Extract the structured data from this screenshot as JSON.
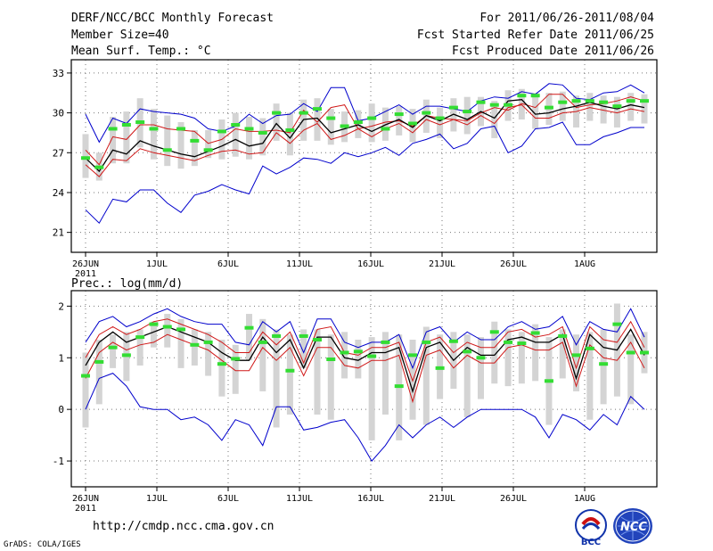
{
  "header": {
    "line1": "DERF/NCC/BCC Monthly Forecast",
    "line2": "Member Size=40",
    "line3": "Mean Surf. Temp.: °C",
    "right1": "For 2011/06/26-2011/08/04",
    "right2": "Fcst Started Refer Date 2011/06/25",
    "right3": "Fcst Produced Date 2011/06/26"
  },
  "footer": {
    "url": "http://cmdp.ncc.cma.gov.cn",
    "credit": "GrADS: COLA/IGES"
  },
  "logos": {
    "bcc": "BCC",
    "ncc": "NCC"
  },
  "colors": {
    "box": "#d4d4d4",
    "mean": "#000000",
    "inner": "#d01818",
    "outer": "#0000cc",
    "median": "#33dd33",
    "grid": "#777777"
  },
  "chart_data": [
    {
      "type": "line",
      "title": "Mean Surf. Temp.: °C",
      "year_label": "2011",
      "ylim": [
        19.5,
        34
      ],
      "yticks": [
        21,
        24,
        27,
        30,
        33
      ],
      "ytick_labels": [
        "21",
        "24",
        "27",
        "30",
        "33"
      ],
      "days": 40,
      "xtick_days": [
        0,
        5,
        10,
        15,
        20,
        25,
        30,
        35
      ],
      "xtick_labels": [
        "26JUN",
        "1JUL",
        "6JUL",
        "11JUL",
        "16JUL",
        "21JUL",
        "26JUL",
        "1AUG"
      ],
      "series": [
        {
          "name": "max",
          "role": "outer",
          "values": [
            29.9,
            27.8,
            29.6,
            29.2,
            30.3,
            30.1,
            30.0,
            29.9,
            29.6,
            28.8,
            28.6,
            29.0,
            29.9,
            29.2,
            29.8,
            29.9,
            30.7,
            30.1,
            31.9,
            31.9,
            29.4,
            29.6,
            30.1,
            30.6,
            29.9,
            30.5,
            30.5,
            30.3,
            30.1,
            30.9,
            31.2,
            31.1,
            31.6,
            31.4,
            32.2,
            32.1,
            31.1,
            31.0,
            31.5,
            31.6,
            32.1,
            31.5
          ]
        },
        {
          "name": "upper",
          "role": "inner",
          "values": [
            27.2,
            26.1,
            28.2,
            28.0,
            29.1,
            29.1,
            28.8,
            28.7,
            28.6,
            27.7,
            28.0,
            28.8,
            28.6,
            28.6,
            28.7,
            28.5,
            30.2,
            29.3,
            30.4,
            30.6,
            28.8,
            29.0,
            29.3,
            29.4,
            29.0,
            29.8,
            29.6,
            29.5,
            29.4,
            30.0,
            30.4,
            30.2,
            30.7,
            30.4,
            31.4,
            31.4,
            30.4,
            30.6,
            30.7,
            30.9,
            31.2,
            30.9
          ]
        },
        {
          "name": "mean",
          "role": "mean",
          "values": [
            26.6,
            25.6,
            27.2,
            26.9,
            27.9,
            27.5,
            27.2,
            26.9,
            26.7,
            27.1,
            27.5,
            28.0,
            27.5,
            27.7,
            29.2,
            28.1,
            29.5,
            29.6,
            28.5,
            28.8,
            29.1,
            28.6,
            29.1,
            29.5,
            28.9,
            29.8,
            29.4,
            29.9,
            29.5,
            30.1,
            29.6,
            30.9,
            31.0,
            29.9,
            30.0,
            30.3,
            30.5,
            30.8,
            30.5,
            30.3,
            30.6,
            30.4
          ]
        },
        {
          "name": "lower",
          "role": "inner",
          "values": [
            26.1,
            25.2,
            26.5,
            26.4,
            27.3,
            27.0,
            26.8,
            26.6,
            26.4,
            26.8,
            27.1,
            27.2,
            26.9,
            27.0,
            28.5,
            27.7,
            28.7,
            29.2,
            28.0,
            28.3,
            28.8,
            28.2,
            28.8,
            29.2,
            28.5,
            29.5,
            29.1,
            29.5,
            29.1,
            29.8,
            29.2,
            30.4,
            30.6,
            29.6,
            29.6,
            30.0,
            30.1,
            30.4,
            30.2,
            30.0,
            30.3,
            30.1
          ]
        },
        {
          "name": "min",
          "role": "outer",
          "values": [
            22.7,
            21.7,
            23.5,
            23.3,
            24.2,
            24.2,
            23.2,
            22.5,
            23.8,
            24.1,
            24.6,
            24.2,
            23.9,
            26.0,
            25.4,
            25.9,
            26.6,
            26.5,
            26.2,
            27.0,
            26.7,
            27.0,
            27.4,
            26.8,
            27.7,
            28.0,
            28.4,
            27.3,
            27.7,
            28.8,
            29.0,
            27.0,
            27.5,
            28.8,
            28.9,
            29.3,
            27.6,
            27.6,
            28.2,
            28.5,
            28.9,
            28.9
          ]
        },
        {
          "name": "median",
          "role": "median",
          "values": [
            26.6,
            25.9,
            28.8,
            29.1,
            29.3,
            28.8,
            27.2,
            28.8,
            27.9,
            27.2,
            28.6,
            29.1,
            28.8,
            28.5,
            30.0,
            28.7,
            30.0,
            30.3,
            29.6,
            29.0,
            29.3,
            29.6,
            28.8,
            29.9,
            29.2,
            30.0,
            29.6,
            30.4,
            30.1,
            30.8,
            30.6,
            30.6,
            31.3,
            31.3,
            30.4,
            30.8,
            30.9,
            30.9,
            30.8,
            30.5,
            30.9,
            30.9
          ]
        },
        {
          "name": "box_high",
          "role": "box",
          "values": [
            28.4,
            27.0,
            29.7,
            30.1,
            31.1,
            30.3,
            29.8,
            29.3,
            28.7,
            28.7,
            29.5,
            30.0,
            29.7,
            29.6,
            30.7,
            30.0,
            31.0,
            31.1,
            30.3,
            30.1,
            30.2,
            30.7,
            30.4,
            30.5,
            30.3,
            31.0,
            30.4,
            31.1,
            31.2,
            31.2,
            30.9,
            31.7,
            31.8,
            31.5,
            31.5,
            31.6,
            31.3,
            31.5,
            31.3,
            31.2,
            31.5,
            31.4
          ]
        },
        {
          "name": "box_low",
          "role": "box",
          "values": [
            25.1,
            24.9,
            26.2,
            26.2,
            27.4,
            26.5,
            26.0,
            25.8,
            26.0,
            26.6,
            26.5,
            26.7,
            26.5,
            26.8,
            27.9,
            26.8,
            27.9,
            27.9,
            27.6,
            27.8,
            28.1,
            27.8,
            27.9,
            28.3,
            27.8,
            28.5,
            28.1,
            28.6,
            28.4,
            29.0,
            28.1,
            29.4,
            29.5,
            28.8,
            29.1,
            29.4,
            28.9,
            29.4,
            29.2,
            28.9,
            29.4,
            29.2
          ]
        }
      ]
    },
    {
      "type": "line",
      "title": "Prec.: log(mm/d)",
      "year_label": "2011",
      "ylim": [
        -1.5,
        2.3
      ],
      "yticks": [
        -1,
        0,
        1,
        2
      ],
      "ytick_labels": [
        "-1",
        "0",
        "1",
        "2"
      ],
      "days": 40,
      "xtick_days": [
        0,
        5,
        10,
        15,
        20,
        25,
        30,
        35
      ],
      "xtick_labels": [
        "26JUN",
        "1JUL",
        "6JUL",
        "11JUL",
        "16JUL",
        "21JUL",
        "26JUL",
        "1AUG"
      ],
      "series": [
        {
          "name": "max",
          "role": "outer",
          "values": [
            1.3,
            1.7,
            1.8,
            1.6,
            1.7,
            1.85,
            1.95,
            1.8,
            1.7,
            1.65,
            1.65,
            1.3,
            1.25,
            1.7,
            1.5,
            1.7,
            1.1,
            1.75,
            1.75,
            1.3,
            1.2,
            1.3,
            1.3,
            1.45,
            0.8,
            1.5,
            1.6,
            1.3,
            1.5,
            1.35,
            1.35,
            1.6,
            1.7,
            1.55,
            1.6,
            1.8,
            1.25,
            1.7,
            1.55,
            1.5,
            1.95,
            1.4
          ]
        },
        {
          "name": "upper",
          "role": "inner",
          "values": [
            1.0,
            1.45,
            1.6,
            1.45,
            1.55,
            1.7,
            1.75,
            1.65,
            1.55,
            1.45,
            1.3,
            1.1,
            1.1,
            1.5,
            1.25,
            1.5,
            0.9,
            1.55,
            1.6,
            1.1,
            1.05,
            1.2,
            1.2,
            1.3,
            0.55,
            1.3,
            1.4,
            1.1,
            1.3,
            1.2,
            1.2,
            1.5,
            1.55,
            1.4,
            1.45,
            1.6,
            0.8,
            1.6,
            1.35,
            1.3,
            1.7,
            1.2
          ]
        },
        {
          "name": "mean",
          "role": "mean",
          "values": [
            0.85,
            1.3,
            1.5,
            1.3,
            1.4,
            1.5,
            1.6,
            1.5,
            1.4,
            1.3,
            1.1,
            0.95,
            0.95,
            1.4,
            1.1,
            1.35,
            0.8,
            1.4,
            1.4,
            1.0,
            0.95,
            1.1,
            1.1,
            1.2,
            0.35,
            1.2,
            1.3,
            0.95,
            1.2,
            1.05,
            1.05,
            1.35,
            1.4,
            1.3,
            1.3,
            1.45,
            0.6,
            1.45,
            1.2,
            1.15,
            1.55,
            1.05
          ]
        },
        {
          "name": "lower",
          "role": "inner",
          "values": [
            0.6,
            1.1,
            1.3,
            1.15,
            1.25,
            1.3,
            1.45,
            1.35,
            1.25,
            1.15,
            0.95,
            0.75,
            0.75,
            1.2,
            0.95,
            1.2,
            0.65,
            1.2,
            1.2,
            0.85,
            0.8,
            0.95,
            0.95,
            1.05,
            0.15,
            1.05,
            1.15,
            0.8,
            1.05,
            0.9,
            0.9,
            1.2,
            1.25,
            1.15,
            1.15,
            1.3,
            0.45,
            1.25,
            1.0,
            0.95,
            1.3,
            0.8
          ]
        },
        {
          "name": "min",
          "role": "outer",
          "values": [
            0.0,
            0.6,
            0.7,
            0.45,
            0.05,
            0.0,
            0.0,
            -0.2,
            -0.15,
            -0.3,
            -0.6,
            -0.2,
            -0.3,
            -0.7,
            0.05,
            0.05,
            -0.4,
            -0.35,
            -0.25,
            -0.2,
            -0.55,
            -1.0,
            -0.7,
            -0.3,
            -0.55,
            -0.3,
            -0.15,
            -0.35,
            -0.15,
            0.0,
            0.0,
            0.0,
            0.0,
            -0.15,
            -0.55,
            -0.1,
            -0.2,
            -0.4,
            -0.1,
            -0.3,
            0.25,
            0.0
          ]
        },
        {
          "name": "median",
          "role": "median",
          "values": [
            0.65,
            0.92,
            1.2,
            1.05,
            1.4,
            1.65,
            1.6,
            1.55,
            1.25,
            1.3,
            0.88,
            0.98,
            1.58,
            1.3,
            1.42,
            0.75,
            1.42,
            1.35,
            0.97,
            1.1,
            1.12,
            1.03,
            1.3,
            0.45,
            1.05,
            1.3,
            0.8,
            1.32,
            1.12,
            1.0,
            1.5,
            1.3,
            1.28,
            1.48,
            0.55,
            1.42,
            1.05,
            1.18,
            0.88,
            1.65,
            1.1,
            1.1
          ]
        },
        {
          "name": "box_high",
          "role": "box",
          "values": [
            1.1,
            1.35,
            1.45,
            1.5,
            1.55,
            1.7,
            1.85,
            1.75,
            1.55,
            1.5,
            1.35,
            1.25,
            1.85,
            1.75,
            1.55,
            1.45,
            1.55,
            1.55,
            1.45,
            1.5,
            1.35,
            1.4,
            1.5,
            1.45,
            1.35,
            1.6,
            1.45,
            1.5,
            1.45,
            1.4,
            1.7,
            1.55,
            1.5,
            1.65,
            1.4,
            1.55,
            1.45,
            1.5,
            1.55,
            2.05,
            1.45,
            1.5
          ]
        },
        {
          "name": "box_low",
          "role": "box",
          "values": [
            -0.35,
            0.1,
            0.8,
            0.55,
            0.85,
            1.2,
            1.2,
            0.8,
            0.85,
            0.65,
            0.25,
            0.3,
            0.95,
            0.35,
            -0.35,
            -0.1,
            0.8,
            -0.1,
            -0.2,
            0.6,
            0.6,
            -0.6,
            -0.1,
            -0.6,
            -0.2,
            -0.3,
            0.2,
            0.4,
            -0.15,
            0.2,
            0.5,
            0.45,
            0.5,
            0.55,
            -0.3,
            0.6,
            0.35,
            -0.2,
            0.1,
            0.25,
            0.1,
            0.7
          ]
        }
      ]
    }
  ]
}
